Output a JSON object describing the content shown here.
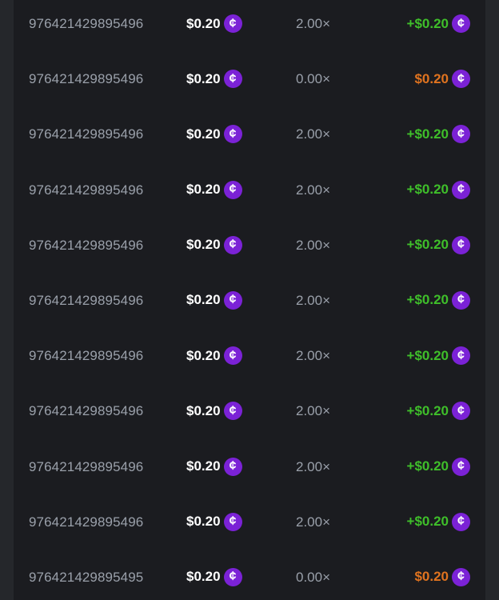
{
  "colors": {
    "win": "#3fbf2a",
    "loss": "#e0731f",
    "coin": "#7b22d6"
  },
  "currency_icon": "cent-coin-icon",
  "coin_glyph": "¢",
  "rows": [
    {
      "id": "976421429895496",
      "bet": "$0.20",
      "multiplier": "2.00×",
      "payout": "+$0.20",
      "result": "win"
    },
    {
      "id": "976421429895496",
      "bet": "$0.20",
      "multiplier": "0.00×",
      "payout": "$0.20",
      "result": "loss"
    },
    {
      "id": "976421429895496",
      "bet": "$0.20",
      "multiplier": "2.00×",
      "payout": "+$0.20",
      "result": "win"
    },
    {
      "id": "976421429895496",
      "bet": "$0.20",
      "multiplier": "2.00×",
      "payout": "+$0.20",
      "result": "win"
    },
    {
      "id": "976421429895496",
      "bet": "$0.20",
      "multiplier": "2.00×",
      "payout": "+$0.20",
      "result": "win"
    },
    {
      "id": "976421429895496",
      "bet": "$0.20",
      "multiplier": "2.00×",
      "payout": "+$0.20",
      "result": "win"
    },
    {
      "id": "976421429895496",
      "bet": "$0.20",
      "multiplier": "2.00×",
      "payout": "+$0.20",
      "result": "win"
    },
    {
      "id": "976421429895496",
      "bet": "$0.20",
      "multiplier": "2.00×",
      "payout": "+$0.20",
      "result": "win"
    },
    {
      "id": "976421429895496",
      "bet": "$0.20",
      "multiplier": "2.00×",
      "payout": "+$0.20",
      "result": "win"
    },
    {
      "id": "976421429895496",
      "bet": "$0.20",
      "multiplier": "2.00×",
      "payout": "+$0.20",
      "result": "win"
    },
    {
      "id": "976421429895495",
      "bet": "$0.20",
      "multiplier": "0.00×",
      "payout": "$0.20",
      "result": "loss"
    }
  ]
}
